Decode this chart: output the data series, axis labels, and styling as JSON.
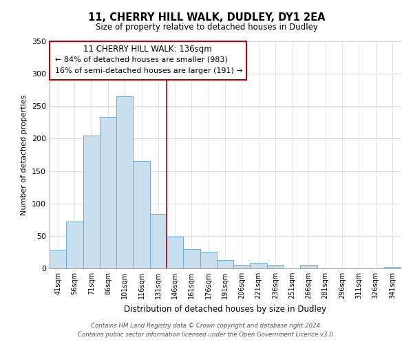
{
  "title": "11, CHERRY HILL WALK, DUDLEY, DY1 2EA",
  "subtitle": "Size of property relative to detached houses in Dudley",
  "xlabel": "Distribution of detached houses by size in Dudley",
  "ylabel": "Number of detached properties",
  "bar_color": "#c9dff0",
  "bar_edge_color": "#6aafd6",
  "categories": [
    "41sqm",
    "56sqm",
    "71sqm",
    "86sqm",
    "101sqm",
    "116sqm",
    "131sqm",
    "146sqm",
    "161sqm",
    "176sqm",
    "191sqm",
    "206sqm",
    "221sqm",
    "236sqm",
    "251sqm",
    "266sqm",
    "281sqm",
    "296sqm",
    "311sqm",
    "326sqm",
    "341sqm"
  ],
  "values": [
    28,
    72,
    205,
    233,
    265,
    165,
    84,
    49,
    30,
    25,
    13,
    5,
    8,
    5,
    0,
    5,
    0,
    0,
    0,
    0,
    2
  ],
  "ylim": [
    0,
    350
  ],
  "yticks": [
    0,
    50,
    100,
    150,
    200,
    250,
    300,
    350
  ],
  "vline_x": 6.5,
  "vline_color": "#c00000",
  "annotation_title": "11 CHERRY HILL WALK: 136sqm",
  "annotation_line1": "← 84% of detached houses are smaller (983)",
  "annotation_line2": "16% of semi-detached houses are larger (191) →",
  "annotation_box_color": "#ffffff",
  "annotation_box_edge": "#c00000",
  "footer_line1": "Contains HM Land Registry data © Crown copyright and database right 2024.",
  "footer_line2": "Contains public sector information licensed under the Open Government Licence v3.0.",
  "background_color": "#ffffff",
  "grid_color": "#d9d9d9"
}
